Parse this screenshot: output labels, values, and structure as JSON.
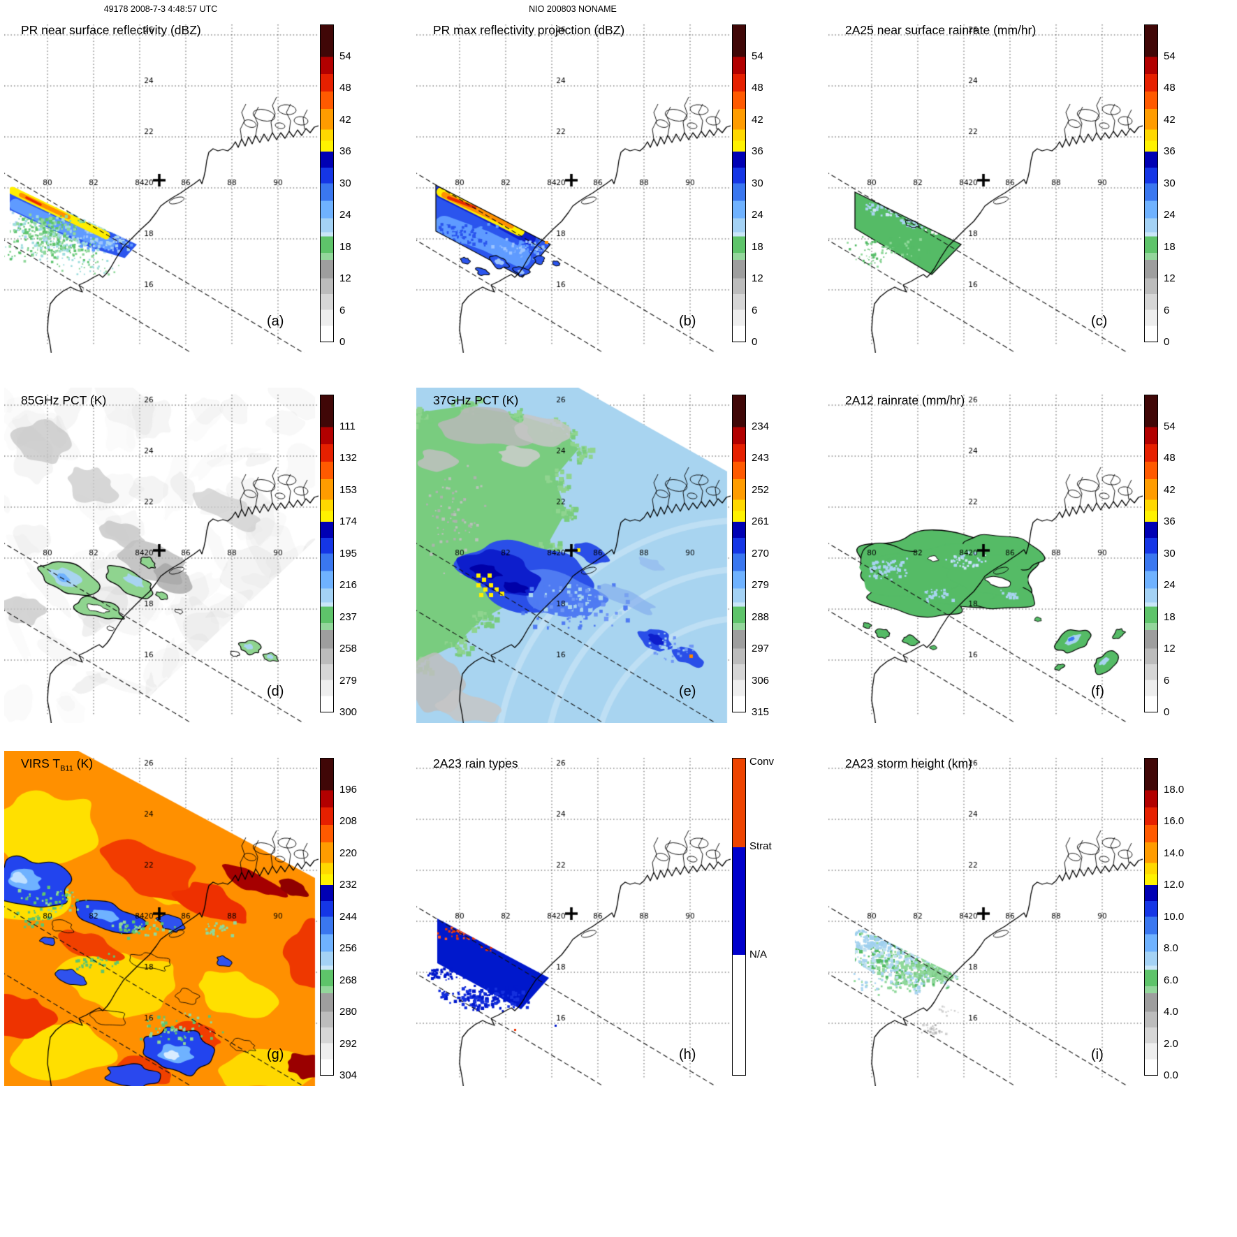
{
  "page": {
    "header_left": "49178 2008-7-3 4:48:57 UTC",
    "header_center": "NIO 200803 NONAME"
  },
  "map": {
    "lon_labels": [
      "80",
      "82",
      "84",
      "86",
      "88",
      "90"
    ],
    "lat_labels": [
      "26",
      "24",
      "22",
      "20",
      "18",
      "16"
    ],
    "marker": "storm-center-cross"
  },
  "colorbars": {
    "rainbow_stops": [
      {
        "color": "#400707",
        "to": 0.1
      },
      {
        "color": "#b20000",
        "to": 0.155
      },
      {
        "color": "#e62000",
        "to": 0.21
      },
      {
        "color": "#ff5a00",
        "to": 0.265
      },
      {
        "color": "#ff9c00",
        "to": 0.33
      },
      {
        "color": "#ffd800",
        "to": 0.365
      },
      {
        "color": "#fff200",
        "to": 0.4
      },
      {
        "color": "#0000b4",
        "to": 0.45
      },
      {
        "color": "#1536e6",
        "to": 0.5
      },
      {
        "color": "#3a77f0",
        "to": 0.555
      },
      {
        "color": "#6fb2ff",
        "to": 0.61
      },
      {
        "color": "#a4d2f5",
        "to": 0.655
      },
      {
        "color": "#c9e6f8",
        "to": 0.668
      },
      {
        "color": "#5ec46a",
        "to": 0.72
      },
      {
        "color": "#93d69b",
        "to": 0.742
      },
      {
        "color": "#9e9e9e",
        "to": 0.8
      },
      {
        "color": "#bcbcbc",
        "to": 0.85
      },
      {
        "color": "#d6d6d6",
        "to": 0.9
      },
      {
        "color": "#eeeeee",
        "to": 0.95
      },
      {
        "color": "#ffffff",
        "to": 1.0
      }
    ],
    "raintype_stops": [
      {
        "color": "#ee4400",
        "to": 0.28
      },
      {
        "color": "#0000cc",
        "to": 0.62
      },
      {
        "color": "#ffffff",
        "to": 1.0
      }
    ]
  },
  "panels": [
    {
      "id": "a",
      "label": "(a)",
      "title": "PR near surface reflectivity (dBZ)",
      "cbar": "rainbow",
      "ticks": [
        "54",
        "48",
        "42",
        "36",
        "30",
        "24",
        "18",
        "12",
        "6",
        "0"
      ]
    },
    {
      "id": "b",
      "label": "(b)",
      "title": "PR max reflectivity projection (dBZ)",
      "cbar": "rainbow",
      "ticks": [
        "54",
        "48",
        "42",
        "36",
        "30",
        "24",
        "18",
        "12",
        "6",
        "0"
      ]
    },
    {
      "id": "c",
      "label": "(c)",
      "title": "2A25 near surface rainrate (mm/hr)",
      "cbar": "rainbow",
      "ticks": [
        "54",
        "48",
        "42",
        "36",
        "30",
        "24",
        "18",
        "12",
        "6",
        "0"
      ]
    },
    {
      "id": "d",
      "label": "(d)",
      "title": "85GHz PCT (K)",
      "cbar": "rainbow",
      "ticks": [
        "111",
        "132",
        "153",
        "174",
        "195",
        "216",
        "237",
        "258",
        "279",
        "300"
      ]
    },
    {
      "id": "e",
      "label": "(e)",
      "title": "37GHz PCT (K)",
      "cbar": "rainbow",
      "ticks": [
        "234",
        "243",
        "252",
        "261",
        "270",
        "279",
        "288",
        "297",
        "306",
        "315"
      ]
    },
    {
      "id": "f",
      "label": "(f)",
      "title": "2A12 rainrate (mm/hr)",
      "cbar": "rainbow",
      "ticks": [
        "54",
        "48",
        "42",
        "36",
        "30",
        "24",
        "18",
        "12",
        "6",
        "0"
      ]
    },
    {
      "id": "g",
      "label": "(g)",
      "title": "VIRS T",
      "title_sub": "B11",
      "title_rest": " (K)",
      "cbar": "rainbow",
      "ticks": [
        "196",
        "208",
        "220",
        "232",
        "244",
        "256",
        "268",
        "280",
        "292",
        "304"
      ]
    },
    {
      "id": "h",
      "label": "(h)",
      "title": "2A23 rain types",
      "cbar": "raintypes",
      "cat_labels": [
        "Conv",
        "Strat",
        "N/A"
      ],
      "cat_fracs": [
        0,
        0.28,
        0.62
      ]
    },
    {
      "id": "i",
      "label": "(i)",
      "title": "2A23 storm height (km)",
      "cbar": "rainbow",
      "ticks": [
        "18.0",
        "16.0",
        "14.0",
        "12.0",
        "10.0",
        "8.0",
        "6.0",
        "4.0",
        "2.0",
        "0.0"
      ]
    }
  ],
  "chart_data": [
    {
      "panel": "(a)",
      "type": "heatmap",
      "title": "PR near surface reflectivity (dBZ)",
      "units": "dBZ",
      "colorbar_ticks": [
        54,
        48,
        42,
        36,
        30,
        24,
        18,
        12,
        6,
        0
      ],
      "lon_ticks": [
        80,
        82,
        84,
        86,
        88,
        90
      ],
      "lat_ticks": [
        26,
        24,
        22,
        20,
        18,
        16
      ]
    },
    {
      "panel": "(b)",
      "type": "heatmap",
      "title": "PR max reflectivity projection (dBZ)",
      "units": "dBZ",
      "colorbar_ticks": [
        54,
        48,
        42,
        36,
        30,
        24,
        18,
        12,
        6,
        0
      ],
      "lon_ticks": [
        80,
        82,
        84,
        86,
        88,
        90
      ],
      "lat_ticks": [
        26,
        24,
        22,
        20,
        18,
        16
      ]
    },
    {
      "panel": "(c)",
      "type": "heatmap",
      "title": "2A25 near surface rainrate (mm/hr)",
      "units": "mm/hr",
      "colorbar_ticks": [
        54,
        48,
        42,
        36,
        30,
        24,
        18,
        12,
        6,
        0
      ],
      "lon_ticks": [
        80,
        82,
        84,
        86,
        88,
        90
      ],
      "lat_ticks": [
        26,
        24,
        22,
        20,
        18,
        16
      ]
    },
    {
      "panel": "(d)",
      "type": "heatmap",
      "title": "85GHz PCT (K)",
      "units": "K",
      "colorbar_ticks": [
        111,
        132,
        153,
        174,
        195,
        216,
        237,
        258,
        279,
        300
      ],
      "lon_ticks": [
        80,
        82,
        84,
        86,
        88,
        90
      ],
      "lat_ticks": [
        26,
        24,
        22,
        20,
        18,
        16
      ]
    },
    {
      "panel": "(e)",
      "type": "heatmap",
      "title": "37GHz PCT (K)",
      "units": "K",
      "colorbar_ticks": [
        234,
        243,
        252,
        261,
        270,
        279,
        288,
        297,
        306,
        315
      ],
      "lon_ticks": [
        80,
        82,
        84,
        86,
        88,
        90
      ],
      "lat_ticks": [
        26,
        24,
        22,
        20,
        18,
        16
      ]
    },
    {
      "panel": "(f)",
      "type": "heatmap",
      "title": "2A12 rainrate (mm/hr)",
      "units": "mm/hr",
      "colorbar_ticks": [
        54,
        48,
        42,
        36,
        30,
        24,
        18,
        12,
        6,
        0
      ],
      "lon_ticks": [
        80,
        82,
        84,
        86,
        88,
        90
      ],
      "lat_ticks": [
        26,
        24,
        22,
        20,
        18,
        16
      ]
    },
    {
      "panel": "(g)",
      "type": "heatmap",
      "title": "VIRS TB11 (K)",
      "units": "K",
      "colorbar_ticks": [
        196,
        208,
        220,
        232,
        244,
        256,
        268,
        280,
        292,
        304
      ],
      "lon_ticks": [
        80,
        82,
        84,
        86,
        88,
        90
      ],
      "lat_ticks": [
        26,
        24,
        22,
        20,
        18,
        16
      ]
    },
    {
      "panel": "(h)",
      "type": "heatmap",
      "title": "2A23 rain types",
      "categories": [
        "Conv",
        "Strat",
        "N/A"
      ],
      "lon_ticks": [
        80,
        82,
        84,
        86,
        88,
        90
      ],
      "lat_ticks": [
        26,
        24,
        22,
        20,
        18,
        16
      ]
    },
    {
      "panel": "(i)",
      "type": "heatmap",
      "title": "2A23 storm height (km)",
      "units": "km",
      "colorbar_ticks": [
        18.0,
        16.0,
        14.0,
        12.0,
        10.0,
        8.0,
        6.0,
        4.0,
        2.0,
        0.0
      ],
      "lon_ticks": [
        80,
        82,
        84,
        86,
        88,
        90
      ],
      "lat_ticks": [
        26,
        24,
        22,
        20,
        18,
        16
      ]
    },
    {
      "panel": "header",
      "type": "table",
      "orbit_time": "49178 2008-7-3 4:48:57 UTC",
      "storm_id": "NIO 200803 NONAME"
    }
  ]
}
